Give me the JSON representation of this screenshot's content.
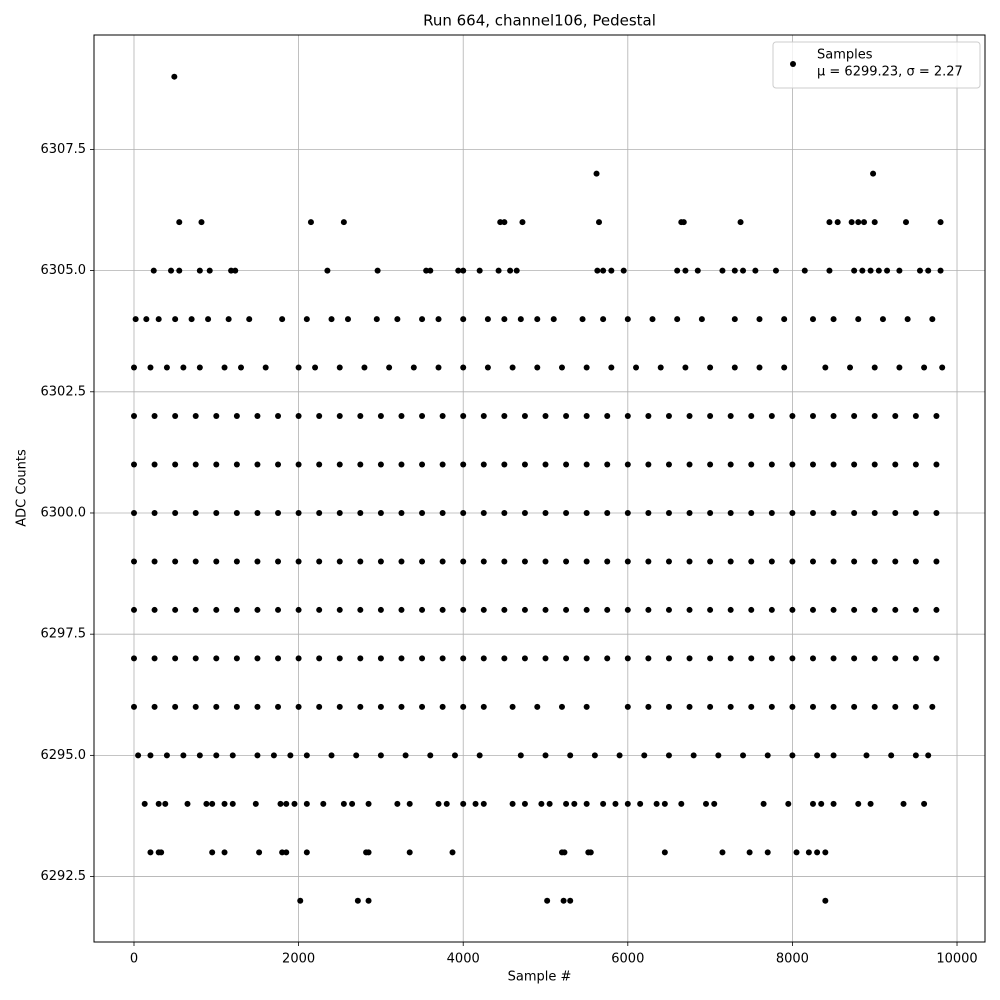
{
  "chart_data": {
    "type": "scatter",
    "title": "Run 664, channel106, Pedestal",
    "x_label": "Sample #",
    "y_label": "ADC Counts",
    "xlim": [
      -486,
      10340
    ],
    "ylim": [
      6291.15,
      6309.86
    ],
    "xticks": [
      0,
      2000,
      4000,
      6000,
      8000,
      10000
    ],
    "yticks": [
      6292.5,
      {
        "value": 6295,
        "label": "6295.0"
      },
      6297.5,
      {
        "value": 6300,
        "label": "6300.0"
      },
      6302.5,
      {
        "value": 6305,
        "label": "6305.0"
      },
      6307.5
    ],
    "grid": true,
    "legend": "upper right",
    "legend_note": "μ = 6299.23, σ = 2.27",
    "series": [
      {
        "name": "Samples",
        "color": "#000000",
        "x": [
          0,
          250,
          500,
          750,
          1000,
          1250,
          1500,
          1750,
          2000,
          2250,
          2500,
          2750,
          3000,
          3250,
          3500,
          3750,
          4000,
          4250,
          4500,
          4750,
          5000,
          5250,
          5500,
          5750,
          6000,
          6250,
          6500,
          6750,
          7000,
          7250,
          7500,
          7750,
          8000,
          8250,
          8500,
          8750,
          9000,
          9250,
          9500,
          9750,
          0,
          250,
          500,
          750,
          1000,
          1250,
          1500,
          1750,
          2000,
          2250,
          2500,
          2750,
          3000,
          3250,
          3500,
          3750,
          4000,
          4250,
          4500,
          4750,
          5000,
          5250,
          5500,
          5750,
          6000,
          6250,
          6500,
          6750,
          7000,
          7250,
          7500,
          7750,
          8000,
          8250,
          8500,
          8750,
          9000,
          9250,
          9500,
          9750,
          0,
          250,
          500,
          750,
          1000,
          1250,
          1500,
          1750,
          2000,
          2250,
          2500,
          2750,
          3000,
          3250,
          3500,
          3750,
          4000,
          4250,
          4500,
          4750,
          5000,
          5250,
          5500,
          5750,
          6000,
          6250,
          6500,
          6750,
          7000,
          7250,
          7500,
          7750,
          8000,
          8250,
          8500,
          8750,
          9000,
          9250,
          9500,
          9750,
          0,
          250,
          500,
          750,
          1000,
          1250,
          1500,
          1750,
          2000,
          2250,
          2500,
          2750,
          3000,
          3250,
          3500,
          3750,
          4000,
          4250,
          4500,
          4750,
          5000,
          5250,
          5500,
          5750,
          6000,
          6250,
          6500,
          6750,
          7000,
          7250,
          7500,
          7750,
          8000,
          8250,
          8500,
          8750,
          9000,
          9250,
          9500,
          9750,
          0,
          250,
          500,
          750,
          1000,
          1250,
          1500,
          1750,
          2000,
          2250,
          2500,
          2750,
          3000,
          3250,
          3500,
          3750,
          4000,
          4250,
          4500,
          4750,
          5000,
          5250,
          5500,
          5750,
          6000,
          6250,
          6500,
          6750,
          7000,
          7250,
          7500,
          7750,
          8000,
          8250,
          8500,
          8750,
          9000,
          9250,
          9500,
          9750,
          0,
          250,
          500,
          750,
          1000,
          1250,
          1500,
          1750,
          2000,
          2250,
          2500,
          2750,
          3000,
          3250,
          3500,
          3750,
          4000,
          4250,
          4500,
          4750,
          5000,
          5250,
          5500,
          5750,
          6000,
          6250,
          6500,
          6750,
          7000,
          7250,
          7500,
          7750,
          8000,
          8250,
          8500,
          8750,
          9000,
          9250,
          9500,
          9750,
          0,
          250,
          500,
          750,
          1000,
          1250,
          1500,
          1750,
          2000,
          2250,
          2500,
          2750,
          3000,
          3250,
          3500,
          3750,
          4000,
          4250,
          4600,
          4900,
          5200,
          5500,
          6000,
          6250,
          6500,
          6750,
          7000,
          7250,
          7500,
          7750,
          8000,
          8250,
          8500,
          8750,
          9000,
          9250,
          9500,
          9700,
          0,
          200,
          400,
          600,
          800,
          1100,
          1300,
          1600,
          2000,
          2200,
          2500,
          2800,
          3100,
          3400,
          3700,
          4000,
          4300,
          4600,
          4900,
          5200,
          5500,
          5800,
          6100,
          6400,
          6700,
          7000,
          7300,
          7600,
          7900,
          8400,
          8700,
          9000,
          9300,
          9600,
          9820,
          20,
          150,
          300,
          500,
          700,
          900,
          1150,
          1400,
          1800,
          2100,
          2400,
          2600,
          2950,
          3200,
          3500,
          3700,
          4000,
          4300,
          4500,
          4700,
          4900,
          5100,
          5450,
          5700,
          6000,
          6300,
          6600,
          6900,
          7300,
          7600,
          7900,
          8250,
          8500,
          8800,
          9100,
          9400,
          9700,
          50,
          200,
          400,
          600,
          800,
          1000,
          1200,
          1500,
          1700,
          1900,
          2100,
          2400,
          2700,
          3000,
          3300,
          3600,
          3900,
          4200,
          4700,
          5000,
          5300,
          5600,
          5900,
          6200,
          6500,
          6800,
          7100,
          7400,
          7700,
          8000,
          8300,
          8500,
          8900,
          9200,
          9500,
          9650,
          240,
          450,
          550,
          800,
          920,
          1180,
          1230,
          2350,
          2960,
          3550,
          3600,
          3940,
          4000,
          4200,
          4430,
          4570,
          4650,
          5630,
          5700,
          5800,
          5950,
          6600,
          6700,
          6850,
          7150,
          7300,
          7400,
          7550,
          7800,
          8150,
          8450,
          8750,
          8850,
          8950,
          9050,
          9150,
          9300,
          9550,
          9650,
          9800,
          550,
          820,
          2150,
          2550,
          4450,
          4500,
          4720,
          5650,
          6650,
          6680,
          7370,
          8450,
          8550,
          8720,
          8800,
          8870,
          9000,
          9380,
          9800,
          5620,
          8980,
          490,
          130,
          300,
          380,
          650,
          880,
          950,
          1100,
          1200,
          1480,
          1780,
          1850,
          1950,
          2100,
          2300,
          2550,
          2650,
          2850,
          3200,
          3350,
          3700,
          3800,
          4000,
          4150,
          4250,
          4600,
          4750,
          4950,
          5050,
          5250,
          5350,
          5500,
          5700,
          5850,
          6000,
          6150,
          6350,
          6450,
          6650,
          6950,
          7050,
          7650,
          7950,
          8250,
          8350,
          8500,
          8800,
          8950,
          9350,
          9600,
          200,
          300,
          330,
          950,
          1100,
          1520,
          1800,
          1850,
          2100,
          2820,
          2850,
          3350,
          3870,
          5200,
          5230,
          5520,
          5550,
          6450,
          7150,
          7480,
          7700,
          8050,
          8200,
          8300,
          8400,
          2020,
          2720,
          2850,
          5020,
          5220,
          5300,
          8400
        ],
        "values": [
          6302,
          6302,
          6302,
          6302,
          6302,
          6302,
          6302,
          6302,
          6302,
          6302,
          6302,
          6302,
          6302,
          6302,
          6302,
          6302,
          6302,
          6302,
          6302,
          6302,
          6302,
          6302,
          6302,
          6302,
          6302,
          6302,
          6302,
          6302,
          6302,
          6302,
          6302,
          6302,
          6302,
          6302,
          6302,
          6302,
          6302,
          6302,
          6302,
          6302,
          6301,
          6301,
          6301,
          6301,
          6301,
          6301,
          6301,
          6301,
          6301,
          6301,
          6301,
          6301,
          6301,
          6301,
          6301,
          6301,
          6301,
          6301,
          6301,
          6301,
          6301,
          6301,
          6301,
          6301,
          6301,
          6301,
          6301,
          6301,
          6301,
          6301,
          6301,
          6301,
          6301,
          6301,
          6301,
          6301,
          6301,
          6301,
          6301,
          6301,
          6300,
          6300,
          6300,
          6300,
          6300,
          6300,
          6300,
          6300,
          6300,
          6300,
          6300,
          6300,
          6300,
          6300,
          6300,
          6300,
          6300,
          6300,
          6300,
          6300,
          6300,
          6300,
          6300,
          6300,
          6300,
          6300,
          6300,
          6300,
          6300,
          6300,
          6300,
          6300,
          6300,
          6300,
          6300,
          6300,
          6300,
          6300,
          6300,
          6300,
          6299,
          6299,
          6299,
          6299,
          6299,
          6299,
          6299,
          6299,
          6299,
          6299,
          6299,
          6299,
          6299,
          6299,
          6299,
          6299,
          6299,
          6299,
          6299,
          6299,
          6299,
          6299,
          6299,
          6299,
          6299,
          6299,
          6299,
          6299,
          6299,
          6299,
          6299,
          6299,
          6299,
          6299,
          6299,
          6299,
          6299,
          6299,
          6299,
          6299,
          6298,
          6298,
          6298,
          6298,
          6298,
          6298,
          6298,
          6298,
          6298,
          6298,
          6298,
          6298,
          6298,
          6298,
          6298,
          6298,
          6298,
          6298,
          6298,
          6298,
          6298,
          6298,
          6298,
          6298,
          6298,
          6298,
          6298,
          6298,
          6298,
          6298,
          6298,
          6298,
          6298,
          6298,
          6298,
          6298,
          6298,
          6298,
          6298,
          6298,
          6297,
          6297,
          6297,
          6297,
          6297,
          6297,
          6297,
          6297,
          6297,
          6297,
          6297,
          6297,
          6297,
          6297,
          6297,
          6297,
          6297,
          6297,
          6297,
          6297,
          6297,
          6297,
          6297,
          6297,
          6297,
          6297,
          6297,
          6297,
          6297,
          6297,
          6297,
          6297,
          6297,
          6297,
          6297,
          6297,
          6297,
          6297,
          6297,
          6297,
          6296,
          6296,
          6296,
          6296,
          6296,
          6296,
          6296,
          6296,
          6296,
          6296,
          6296,
          6296,
          6296,
          6296,
          6296,
          6296,
          6296,
          6296,
          6296,
          6296,
          6296,
          6296,
          6296,
          6296,
          6296,
          6296,
          6296,
          6296,
          6296,
          6296,
          6296,
          6296,
          6296,
          6296,
          6296,
          6296,
          6296,
          6296,
          6303,
          6303,
          6303,
          6303,
          6303,
          6303,
          6303,
          6303,
          6303,
          6303,
          6303,
          6303,
          6303,
          6303,
          6303,
          6303,
          6303,
          6303,
          6303,
          6303,
          6303,
          6303,
          6303,
          6303,
          6303,
          6303,
          6303,
          6303,
          6303,
          6303,
          6303,
          6303,
          6303,
          6303,
          6303,
          6304,
          6304,
          6304,
          6304,
          6304,
          6304,
          6304,
          6304,
          6304,
          6304,
          6304,
          6304,
          6304,
          6304,
          6304,
          6304,
          6304,
          6304,
          6304,
          6304,
          6304,
          6304,
          6304,
          6304,
          6304,
          6304,
          6304,
          6304,
          6304,
          6304,
          6304,
          6304,
          6304,
          6304,
          6304,
          6304,
          6304,
          6295,
          6295,
          6295,
          6295,
          6295,
          6295,
          6295,
          6295,
          6295,
          6295,
          6295,
          6295,
          6295,
          6295,
          6295,
          6295,
          6295,
          6295,
          6295,
          6295,
          6295,
          6295,
          6295,
          6295,
          6295,
          6295,
          6295,
          6295,
          6295,
          6295,
          6295,
          6295,
          6295,
          6295,
          6295,
          6295,
          6305,
          6305,
          6305,
          6305,
          6305,
          6305,
          6305,
          6305,
          6305,
          6305,
          6305,
          6305,
          6305,
          6305,
          6305,
          6305,
          6305,
          6305,
          6305,
          6305,
          6305,
          6305,
          6305,
          6305,
          6305,
          6305,
          6305,
          6305,
          6305,
          6305,
          6305,
          6305,
          6305,
          6305,
          6305,
          6305,
          6305,
          6305,
          6305,
          6305,
          6306,
          6306,
          6306,
          6306,
          6306,
          6306,
          6306,
          6306,
          6306,
          6306,
          6306,
          6306,
          6306,
          6306,
          6306,
          6306,
          6306,
          6306,
          6306,
          6307,
          6307,
          6309,
          6294,
          6294,
          6294,
          6294,
          6294,
          6294,
          6294,
          6294,
          6294,
          6294,
          6294,
          6294,
          6294,
          6294,
          6294,
          6294,
          6294,
          6294,
          6294,
          6294,
          6294,
          6294,
          6294,
          6294,
          6294,
          6294,
          6294,
          6294,
          6294,
          6294,
          6294,
          6294,
          6294,
          6294,
          6294,
          6294,
          6294,
          6294,
          6294,
          6294,
          6294,
          6294,
          6294,
          6294,
          6294,
          6294,
          6294,
          6294,
          6294,
          6293,
          6293,
          6293,
          6293,
          6293,
          6293,
          6293,
          6293,
          6293,
          6293,
          6293,
          6293,
          6293,
          6293,
          6293,
          6293,
          6293,
          6293,
          6293,
          6293,
          6293,
          6293,
          6293,
          6293,
          6293,
          6292,
          6292,
          6292,
          6292,
          6292,
          6292,
          6292
        ]
      }
    ]
  }
}
